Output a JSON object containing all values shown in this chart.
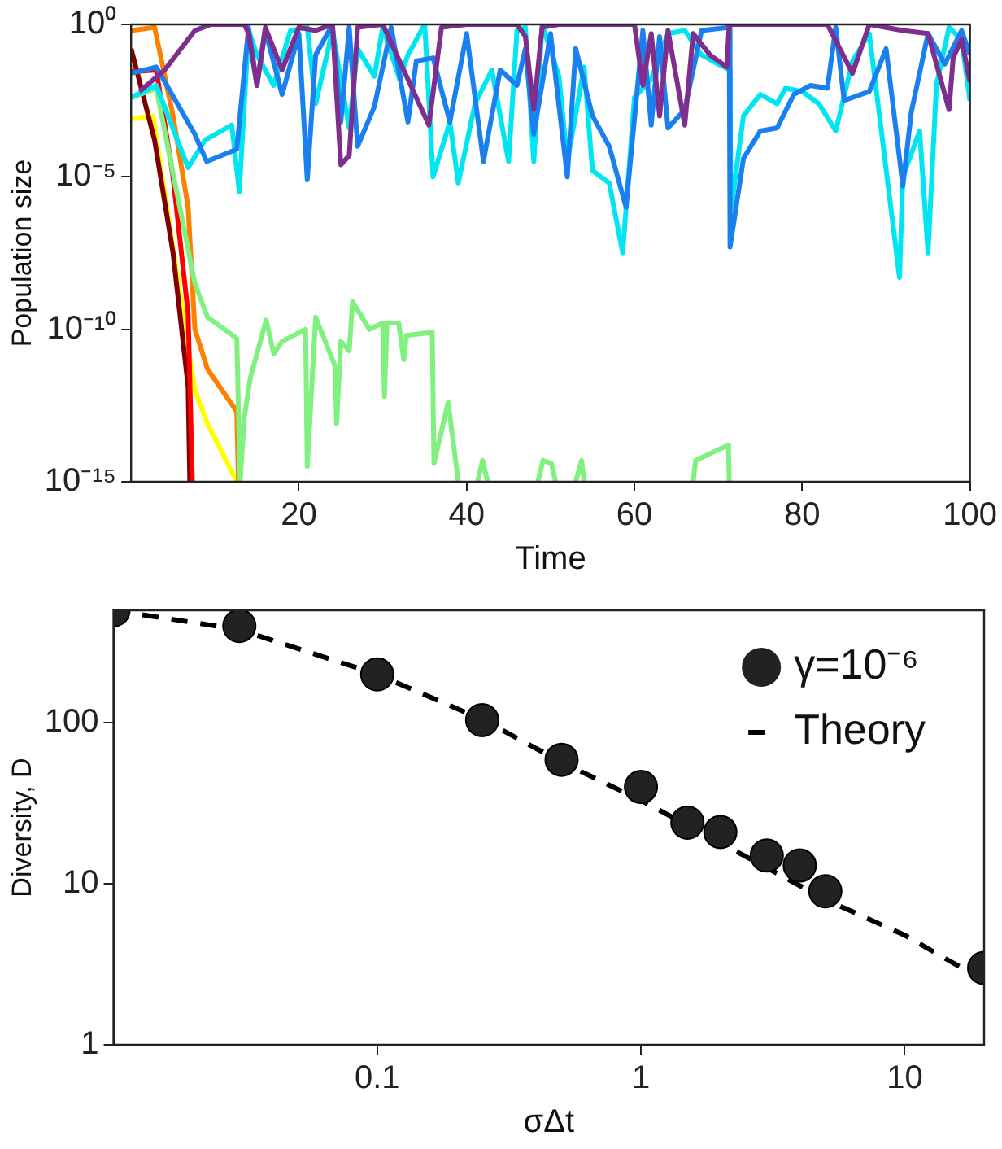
{
  "chart_data": [
    {
      "type": "line",
      "xlabel": "Time",
      "ylabel": "Population size",
      "log": "y",
      "xlim": [
        0,
        100
      ],
      "xticks": [
        20,
        40,
        60,
        80,
        100
      ],
      "ylim": [
        1e-15,
        1
      ],
      "yticks": [
        {
          "value": 1e-15,
          "label": "10⁻¹⁵"
        },
        {
          "value": 1e-10,
          "label": "10⁻¹⁰"
        },
        {
          "value": 1e-05,
          "label": "10⁻⁵"
        },
        {
          "value": 1,
          "label": "10⁰"
        }
      ],
      "grid": false,
      "legend": false,
      "line_style": "solid",
      "marker": "none",
      "series": [
        {
          "color": "#7e2f8e",
          "x": [
            1,
            4,
            7.6,
            9.5,
            13.5,
            14,
            15,
            16,
            18,
            20,
            22,
            24,
            25,
            26,
            27,
            30,
            35.5,
            37,
            40,
            46,
            47,
            48,
            49,
            51,
            60,
            61,
            62,
            63,
            64,
            66,
            67,
            69,
            71,
            71.3,
            80,
            83,
            86,
            88,
            92,
            95,
            97.5,
            98,
            99,
            100
          ],
          "values": [
            0.0063,
            0.032,
            0.63,
            1,
            1,
            0.5,
            0.01,
            0.8,
            0.032,
            0.8,
            0.63,
            1,
            2.5e-05,
            5e-05,
            0.8,
            1,
            0.0005,
            0.8,
            1,
            1,
            0.4,
            0.0016,
            0.8,
            1,
            1,
            0.01,
            0.5,
            0.001,
            0.63,
            0.0005,
            0.5,
            0.1,
            0.04,
            1,
            1,
            1,
            0.025,
            1,
            0.63,
            0.5,
            0.0016,
            0.08,
            0.32,
            0.013
          ]
        },
        {
          "color": "#1a80f0",
          "x": [
            0,
            3,
            7.6,
            9,
            12.6,
            14,
            15,
            16,
            18,
            20,
            21,
            22,
            24,
            25,
            26,
            27,
            29,
            31,
            33,
            34,
            36,
            38,
            40,
            42,
            44,
            46,
            47,
            48,
            50,
            52,
            53,
            55,
            57,
            59,
            61,
            62,
            63,
            64,
            66,
            68,
            71.3,
            71.4,
            73,
            75,
            77,
            79,
            81,
            83,
            84,
            85,
            88,
            90,
            92,
            93,
            95,
            97,
            99,
            100
          ],
          "values": [
            0.025,
            0.04,
            0.00025,
            3.2e-05,
            8e-05,
            0.8,
            0.01,
            0.63,
            0.005,
            0.5,
            8e-06,
            0.1,
            1,
            0.00063,
            0.8,
            0.0001,
            0.002,
            0.8,
            0.00063,
            0.063,
            0.08,
            0.00063,
            0.5,
            3.2e-05,
            0.032,
            0.01,
            0.16,
            0.00025,
            0.5,
            1e-05,
            0.16,
            0.001,
            0.0001,
            1e-06,
            0.63,
            0.0005,
            0.4,
            0.0004,
            0.0016,
            0.63,
            0.8,
            5e-08,
            4e-05,
            0.00032,
            0.0004,
            0.005,
            0.01,
            0.008,
            0.8,
            0.0032,
            0.0063,
            0.16,
            5e-06,
            0.0013,
            0.5,
            0.05,
            0.63,
            0.1
          ]
        },
        {
          "color": "#00e6f0",
          "x": [
            0,
            3,
            6.8,
            8.8,
            12,
            12.9,
            14,
            15,
            17,
            19,
            21,
            22,
            24,
            26,
            27,
            29,
            30,
            32,
            33,
            35,
            36,
            38,
            39,
            41,
            43,
            45,
            46,
            47,
            48,
            49,
            51,
            52,
            54,
            55,
            57,
            58.6,
            60,
            62,
            64,
            66,
            68,
            70,
            71.4,
            71.5,
            73,
            75,
            77,
            78,
            80,
            82,
            84,
            86,
            88,
            91.6,
            92,
            94,
            95,
            96,
            97.5,
            99,
            100
          ],
          "values": [
            0.004,
            0.01,
            2e-05,
            0.00016,
            0.0005,
            3.2e-06,
            0.63,
            0.1,
            0.01,
            0.63,
            0.8,
            0.0025,
            0.63,
            0.0004,
            0.16,
            0.02,
            0.8,
            0.016,
            0.1,
            1,
            1e-05,
            0.00063,
            6.3e-06,
            0.0025,
            0.032,
            3.2e-05,
            0.63,
            0.8,
            3.2e-05,
            1,
            0.02,
            3.2e-05,
            0.04,
            1.6e-05,
            6.3e-06,
            3.2e-08,
            0.004,
            0.016,
            0.5,
            0.63,
            0.1,
            0.05,
            0.032,
            8e-07,
            0.001,
            0.005,
            0.0025,
            0.008,
            0.0063,
            0.0025,
            0.00032,
            0.063,
            0.5,
            5e-09,
            1e-05,
            0.00032,
            3.2e-08,
            0.01,
            0.8,
            0.32,
            0.0032
          ]
        },
        {
          "color": "#80f080",
          "x": [
            0,
            3,
            7.6,
            9.1,
            12.6,
            13,
            13.5,
            14.2,
            16.1,
            17,
            18,
            20.8,
            21,
            22,
            24.3,
            24.5,
            25,
            26,
            26.4,
            28.4,
            30,
            30.2,
            30.5,
            31.9,
            32.5,
            32.8,
            35.9,
            36.1,
            37.8,
            39,
            40,
            41.3,
            41.9,
            42.5,
            45,
            48.5,
            49.1,
            50.1,
            50.6,
            52,
            53,
            53.7,
            54,
            60,
            67,
            67.3,
            71.2,
            71.3
          ],
          "values": [
            0.004,
            0.008,
            3.2e-09,
            2.5e-10,
            5e-11,
            1e-15,
            1.3e-13,
            2.5e-12,
            2e-10,
            1.6e-11,
            4e-11,
            1e-10,
            3.2e-15,
            2.5e-10,
            6.3e-12,
            8e-14,
            4e-11,
            2e-11,
            8e-10,
            1e-10,
            1.6e-10,
            6.3e-13,
            1.6e-10,
            1.6e-10,
            1e-11,
            6.3e-11,
            8e-11,
            4e-15,
            4e-13,
            1e-15,
            null,
            1e-15,
            5e-15,
            1e-15,
            null,
            1e-15,
            5e-15,
            4e-15,
            1e-15,
            null,
            1e-15,
            5e-15,
            1e-15,
            null,
            1e-15,
            5e-15,
            1.6e-14,
            1e-15
          ]
        },
        {
          "color": "#ff8000",
          "x": [
            0,
            2.8,
            5,
            6.8,
            7.6,
            9.1,
            12.6,
            12.8
          ],
          "values": [
            0.63,
            0.8,
            0.001,
            1e-06,
            1e-10,
            5e-12,
            2e-13,
            1e-15
          ]
        },
        {
          "color": "#ff0000",
          "x": [
            0,
            3,
            5,
            6.8,
            7.3
          ],
          "values": [
            0.028,
            0.032,
            1e-05,
            3.2e-10,
            1e-15
          ]
        },
        {
          "color": "#800000",
          "x": [
            0,
            2.8,
            5,
            6.8,
            7
          ],
          "values": [
            0.16,
            0.00016,
            3.2e-08,
            1.3e-12,
            1e-15
          ]
        },
        {
          "color": "#ffff00",
          "x": [
            0,
            2.6,
            7.6,
            9.1,
            12.6
          ],
          "values": [
            0.0008,
            0.001,
            1e-12,
            8e-14,
            1e-15
          ]
        }
      ]
    },
    {
      "type": "scatter",
      "xlabel": "σΔt",
      "ylabel": "Diversity, D",
      "log": "xy",
      "xlim": [
        0.01,
        20
      ],
      "xticks": [
        0.1,
        1,
        10
      ],
      "ylim": [
        1,
        500
      ],
      "yticks": [
        1,
        10,
        100
      ],
      "grid": false,
      "legend": "top right",
      "series": [
        {
          "name": "γ=10⁻⁶",
          "type": "scatter",
          "marker": "circle",
          "color": "#222222",
          "x": [
            0.01,
            0.03,
            0.1,
            0.25,
            0.5,
            1,
            1.5,
            2,
            3,
            4,
            5,
            20
          ],
          "values": [
            500,
            400,
            200,
            104,
            59,
            40,
            24,
            21,
            15,
            13,
            9,
            3
          ]
        },
        {
          "name": "Theory",
          "type": "line",
          "marker": "none",
          "line_style": "dashed",
          "color": "#000000",
          "x": [
            0.01,
            0.03,
            0.1,
            0.25,
            0.5,
            1,
            2,
            5,
            10,
            20
          ],
          "values": [
            500,
            380,
            200,
            105,
            57,
            33,
            18,
            8,
            4.8,
            2.5
          ]
        }
      ]
    }
  ]
}
